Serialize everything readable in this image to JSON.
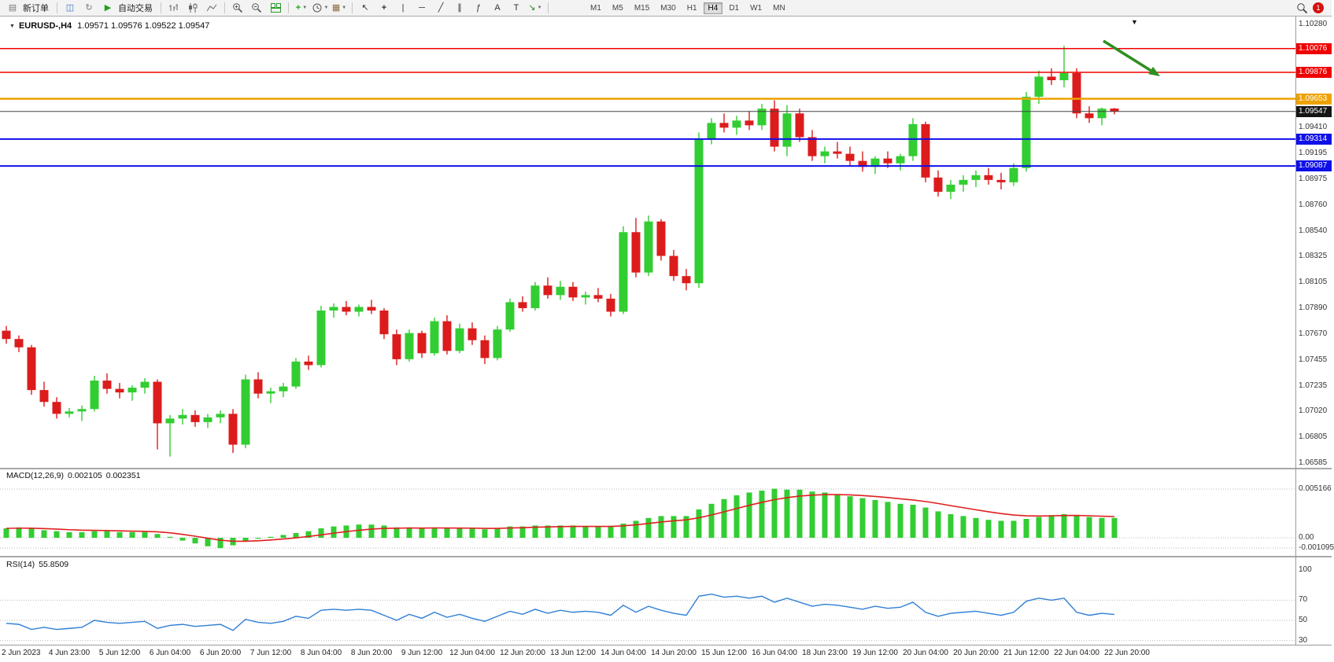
{
  "toolbar": {
    "new_order_label": "新订单",
    "autotrading_label": "自动交易",
    "timeframes": [
      "M1",
      "M5",
      "M15",
      "M30",
      "H1",
      "H4",
      "D1",
      "W1",
      "MN"
    ],
    "active_timeframe": "H4",
    "notification_badge": "1"
  },
  "main_chart": {
    "title": "EURUSD-,H4",
    "ohlc_text": "1.09571 1.09576 1.09522 1.09547"
  },
  "macd_panel": {
    "label": "MACD(12,26,9)",
    "main_value": "0.002105",
    "signal_value": "0.002351"
  },
  "rsi_panel": {
    "label": "RSI(14)",
    "value": "55.8509"
  },
  "chart_data": {
    "type": "candlestick",
    "symbol": "EURUSD-",
    "period": "H4",
    "price_range": {
      "top_label_value": 1.1028,
      "bottom_label_value": 1.06585
    },
    "price_scale_labels": [
      "1.10280",
      "1.09410",
      "1.09195",
      "1.08975",
      "1.08760",
      "1.08540",
      "1.08325",
      "1.08105",
      "1.07890",
      "1.07670",
      "1.07455",
      "1.07235",
      "1.07020",
      "1.06805",
      "1.06585"
    ],
    "candles": [
      [
        1.077,
        1.0774,
        1.0759,
        1.0763
      ],
      [
        1.0763,
        1.0766,
        1.0752,
        1.0756
      ],
      [
        1.0756,
        1.0758,
        1.0716,
        1.072
      ],
      [
        1.072,
        1.0727,
        1.0706,
        1.071
      ],
      [
        1.071,
        1.0714,
        1.0696,
        1.07
      ],
      [
        1.07,
        1.0705,
        1.0697,
        1.0702
      ],
      [
        1.0702,
        1.0707,
        1.0694,
        1.0704
      ],
      [
        1.0704,
        1.0732,
        1.0702,
        1.0728
      ],
      [
        1.0728,
        1.0734,
        1.0717,
        1.0721
      ],
      [
        1.0721,
        1.0726,
        1.0713,
        1.0718
      ],
      [
        1.0718,
        1.0724,
        1.0711,
        1.0722
      ],
      [
        1.0722,
        1.073,
        1.0717,
        1.0727
      ],
      [
        1.0727,
        1.0729,
        1.067,
        1.0692
      ],
      [
        1.0692,
        1.0699,
        1.0664,
        1.0696
      ],
      [
        1.0696,
        1.0704,
        1.0691,
        1.0699
      ],
      [
        1.0699,
        1.0703,
        1.0689,
        1.0693
      ],
      [
        1.0693,
        1.07,
        1.0688,
        1.0697
      ],
      [
        1.0697,
        1.0703,
        1.0692,
        1.07
      ],
      [
        1.07,
        1.0704,
        1.0667,
        1.0674
      ],
      [
        1.0674,
        1.0733,
        1.0671,
        1.0729
      ],
      [
        1.0729,
        1.0735,
        1.0713,
        1.0717
      ],
      [
        1.0717,
        1.0722,
        1.0709,
        1.0719
      ],
      [
        1.0719,
        1.0726,
        1.0714,
        1.0723
      ],
      [
        1.0723,
        1.0747,
        1.0721,
        1.0744
      ],
      [
        1.0744,
        1.0749,
        1.0737,
        1.0741
      ],
      [
        1.0741,
        1.0791,
        1.0739,
        1.0787
      ],
      [
        1.0787,
        1.0793,
        1.0781,
        1.079
      ],
      [
        1.079,
        1.0795,
        1.0783,
        1.0786
      ],
      [
        1.0786,
        1.0792,
        1.0782,
        1.079
      ],
      [
        1.079,
        1.0796,
        1.0784,
        1.0787
      ],
      [
        1.0787,
        1.0789,
        1.0763,
        1.0767
      ],
      [
        1.0767,
        1.0771,
        1.0741,
        1.0746
      ],
      [
        1.0746,
        1.0771,
        1.0744,
        1.0768
      ],
      [
        1.0768,
        1.077,
        1.0747,
        1.0751
      ],
      [
        1.0751,
        1.0781,
        1.0749,
        1.0778
      ],
      [
        1.0778,
        1.0783,
        1.075,
        1.0753
      ],
      [
        1.0753,
        1.0776,
        1.0751,
        1.0772
      ],
      [
        1.0772,
        1.0777,
        1.0758,
        1.0762
      ],
      [
        1.0762,
        1.0766,
        1.0742,
        1.0747
      ],
      [
        1.0747,
        1.0774,
        1.0745,
        1.0771
      ],
      [
        1.0771,
        1.0797,
        1.0769,
        1.0794
      ],
      [
        1.0794,
        1.0799,
        1.0786,
        1.0789
      ],
      [
        1.0789,
        1.0811,
        1.0787,
        1.0808
      ],
      [
        1.0808,
        1.0815,
        1.0797,
        1.08
      ],
      [
        1.08,
        1.0812,
        1.0796,
        1.0807
      ],
      [
        1.0807,
        1.0811,
        1.0795,
        1.0798
      ],
      [
        1.0798,
        1.0803,
        1.0792,
        1.08
      ],
      [
        1.08,
        1.0806,
        1.0794,
        1.0797
      ],
      [
        1.0797,
        1.0801,
        1.0782,
        1.0786
      ],
      [
        1.0786,
        1.0858,
        1.0784,
        1.0853
      ],
      [
        1.0853,
        1.0865,
        1.0815,
        1.0819
      ],
      [
        1.0819,
        1.0867,
        1.0816,
        1.0862
      ],
      [
        1.0862,
        1.0864,
        1.0829,
        1.0833
      ],
      [
        1.0833,
        1.0838,
        1.0812,
        1.0816
      ],
      [
        1.0816,
        1.0822,
        1.0804,
        1.081
      ],
      [
        1.081,
        1.0937,
        1.0806,
        1.0931
      ],
      [
        1.0931,
        1.0949,
        1.0927,
        1.0945
      ],
      [
        1.0945,
        1.0953,
        1.0937,
        1.0941
      ],
      [
        1.0941,
        1.0951,
        1.0935,
        1.0947
      ],
      [
        1.0947,
        1.0955,
        1.0939,
        1.0943
      ],
      [
        1.0943,
        1.0961,
        1.0939,
        1.0957
      ],
      [
        1.0957,
        1.0964,
        1.0921,
        1.0925
      ],
      [
        1.0925,
        1.096,
        1.0917,
        1.0953
      ],
      [
        1.0953,
        1.0957,
        1.0929,
        1.0933
      ],
      [
        1.0933,
        1.0939,
        1.0913,
        1.0917
      ],
      [
        1.0917,
        1.0925,
        1.0911,
        1.0921
      ],
      [
        1.0921,
        1.0929,
        1.0915,
        1.0919
      ],
      [
        1.0919,
        1.0925,
        1.0909,
        1.0913
      ],
      [
        1.0913,
        1.0921,
        1.0904,
        1.0908
      ],
      [
        1.0908,
        1.0917,
        1.0902,
        1.0915
      ],
      [
        1.0915,
        1.0921,
        1.0907,
        1.0911
      ],
      [
        1.0911,
        1.0919,
        1.0905,
        1.0917
      ],
      [
        1.0917,
        1.0949,
        1.0913,
        1.0944
      ],
      [
        1.0944,
        1.0946,
        1.0895,
        1.0899
      ],
      [
        1.0899,
        1.0905,
        1.0883,
        1.0887
      ],
      [
        1.0887,
        1.0897,
        1.0881,
        1.0893
      ],
      [
        1.0893,
        1.0901,
        1.0887,
        1.0897
      ],
      [
        1.0897,
        1.0905,
        1.0891,
        1.0901
      ],
      [
        1.0901,
        1.0907,
        1.0893,
        1.0897
      ],
      [
        1.0897,
        1.0903,
        1.0889,
        1.0895
      ],
      [
        1.0895,
        1.0911,
        1.0892,
        1.0907
      ],
      [
        1.0907,
        1.0971,
        1.0904,
        1.0967
      ],
      [
        1.0967,
        1.0989,
        1.0961,
        1.0984
      ],
      [
        1.0984,
        1.0991,
        1.0977,
        1.0981
      ],
      [
        1.0981,
        1.101,
        1.0975,
        1.0987
      ],
      [
        1.0987,
        1.0991,
        1.0949,
        1.0953
      ],
      [
        1.0953,
        1.0959,
        1.0945,
        1.0949
      ],
      [
        1.0949,
        1.0958,
        1.0943,
        1.0957
      ],
      [
        1.09571,
        1.09576,
        1.09522,
        1.09547
      ]
    ],
    "horizontal_lines": [
      {
        "price": 1.10076,
        "label": "1.10076",
        "color": "#f00000",
        "line_width": 1.5
      },
      {
        "price": 1.09876,
        "label": "1.09876",
        "color": "#f00000",
        "line_width": 1.5
      },
      {
        "price": 1.09653,
        "label": "1.09653",
        "color": "#eea200",
        "line_width": 2.5
      },
      {
        "price": 1.09314,
        "label": "1.09314",
        "color": "#0f0fe8",
        "line_width": 2
      },
      {
        "price": 1.09087,
        "label": "1.09087",
        "color": "#0f0fe8",
        "line_width": 2
      }
    ],
    "current_price": {
      "value": 1.09547,
      "label": "1.09547"
    },
    "arrow_annotation": {
      "from": [
        1402,
        52
      ],
      "to": [
        1474,
        97
      ],
      "color": "#2d8f1f"
    },
    "time_axis": {
      "labels": [
        "2 Jun 2023",
        "4 Jun 23:00",
        "5 Jun 12:00",
        "6 Jun 04:00",
        "6 Jun 20:00",
        "7 Jun 12:00",
        "8 Jun 04:00",
        "8 Jun 20:00",
        "9 Jun 12:00",
        "12 Jun 04:00",
        "12 Jun 20:00",
        "13 Jun 12:00",
        "14 Jun 04:00",
        "14 Jun 20:00",
        "15 Jun 12:00",
        "16 Jun 04:00",
        "18 Jun 23:00",
        "19 Jun 12:00",
        "20 Jun 04:00",
        "20 Jun 20:00",
        "21 Jun 12:00",
        "22 Jun 04:00",
        "22 Jun 20:00"
      ],
      "first_label_bar": 1,
      "bars_per_label": 4
    },
    "macd": {
      "parameters": "12,26,9",
      "histogram": [
        0.001,
        0.0011,
        0.001,
        0.0008,
        0.0007,
        0.0006,
        0.0006,
        0.0007,
        0.0007,
        0.0006,
        0.0006,
        0.0006,
        0.0004,
        0.0001,
        -0.0003,
        -0.0006,
        -0.0009,
        -0.0011,
        -0.0008,
        -0.0004,
        -0.0001,
        0.0001,
        0.0003,
        0.0005,
        0.0007,
        0.001,
        0.0012,
        0.0013,
        0.0014,
        0.0014,
        0.0013,
        0.0011,
        0.0011,
        0.001,
        0.0011,
        0.001,
        0.001,
        0.001,
        0.0009,
        0.001,
        0.0012,
        0.0012,
        0.0013,
        0.0013,
        0.0013,
        0.0013,
        0.0012,
        0.0012,
        0.0012,
        0.0015,
        0.0018,
        0.0021,
        0.0023,
        0.0023,
        0.0023,
        0.003,
        0.0036,
        0.0041,
        0.0045,
        0.0048,
        0.005,
        0.0052,
        0.0051,
        0.0051,
        0.0049,
        0.0048,
        0.0046,
        0.0044,
        0.0042,
        0.004,
        0.0038,
        0.0036,
        0.0035,
        0.0032,
        0.0028,
        0.0025,
        0.0023,
        0.0021,
        0.0019,
        0.0018,
        0.0018,
        0.002,
        0.0022,
        0.0024,
        0.0025,
        0.0024,
        0.0022,
        0.0021,
        0.002105
      ],
      "last_main": 0.002105,
      "last_signal": 0.002351,
      "scale_labels": [
        "0.005166",
        "0.00",
        "-0.001095"
      ],
      "scale_values": [
        0.005166,
        0,
        -0.001095
      ]
    },
    "rsi": {
      "period": 14,
      "last_value": 55.8509,
      "values": [
        47,
        46,
        41,
        43,
        41,
        42,
        43,
        50,
        48,
        47,
        48,
        49,
        42,
        45,
        46,
        44,
        45,
        46,
        40,
        51,
        48,
        47,
        49,
        54,
        52,
        60,
        61,
        60,
        61,
        60,
        55,
        50,
        56,
        52,
        58,
        53,
        56,
        52,
        49,
        54,
        59,
        56,
        61,
        57,
        60,
        58,
        59,
        58,
        55,
        65,
        58,
        64,
        60,
        57,
        55,
        74,
        76,
        73,
        74,
        72,
        74,
        68,
        72,
        68,
        64,
        66,
        65,
        63,
        61,
        64,
        62,
        63,
        68,
        58,
        54,
        57,
        58,
        59,
        57,
        55,
        58,
        69,
        72,
        70,
        72,
        58,
        55,
        57,
        55.85
      ],
      "levels": [
        70,
        50,
        30
      ],
      "scale_labels": [
        "100",
        "70",
        "50",
        "30"
      ],
      "scale_values": [
        100,
        70,
        50,
        30
      ]
    },
    "colors": {
      "up": "#32cd32",
      "down": "#dc1c1c",
      "macd_hist": "#32cd32",
      "macd_signal": "#e01f1f",
      "rsi_line": "#2e7fd6"
    }
  }
}
